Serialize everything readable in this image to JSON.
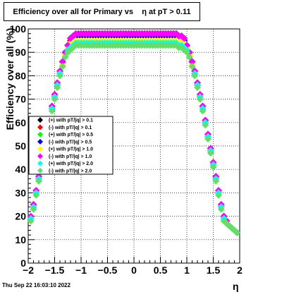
{
  "title": "Efficiency over all for Primary vs    η at pT > 0.11",
  "ylabel": "Efficiency over all (%)",
  "xlabel": "η",
  "footer": "Thu Sep 22 16:03:10 2022",
  "chart_data": {
    "type": "scatter",
    "title": "Efficiency over all for Primary vs    η at pT > 0.11",
    "xlabel": "η",
    "ylabel": "Efficiency over all (%)",
    "xlim": [
      -2,
      2
    ],
    "ylim": [
      0,
      100
    ],
    "grid": true,
    "legend_position": "left-middle",
    "x_ticks": [
      "−2",
      "−1.5",
      "−1",
      "−0.5",
      "0",
      "0.5",
      "1",
      "1.5",
      "2"
    ],
    "y_ticks": [
      "0",
      "10",
      "20",
      "30",
      "40",
      "50",
      "60",
      "70",
      "80",
      "90",
      "100"
    ],
    "x": [
      -1.95,
      -1.9,
      -1.85,
      -1.8,
      -1.75,
      -1.7,
      -1.65,
      -1.6,
      -1.55,
      -1.5,
      -1.45,
      -1.4,
      -1.35,
      -1.3,
      -1.25,
      -1.2,
      -1.15,
      -1.1,
      -1.05,
      -1.0,
      -0.95,
      -0.9,
      -0.85,
      -0.8,
      -0.75,
      -0.7,
      -0.65,
      -0.6,
      -0.55,
      -0.5,
      -0.45,
      -0.4,
      -0.35,
      -0.3,
      -0.25,
      -0.2,
      -0.15,
      -0.1,
      -0.05,
      0.0,
      0.05,
      0.1,
      0.15,
      0.2,
      0.25,
      0.3,
      0.35,
      0.4,
      0.45,
      0.5,
      0.55,
      0.6,
      0.65,
      0.7,
      0.75,
      0.8,
      0.85,
      0.9,
      0.95,
      1.0,
      1.05,
      1.1,
      1.15,
      1.2,
      1.25,
      1.3,
      1.35,
      1.4,
      1.45,
      1.5,
      1.55,
      1.6,
      1.65,
      1.7,
      1.75,
      1.8,
      1.85,
      1.9,
      1.95
    ],
    "series": [
      {
        "name": "(+) with pT/|q| > 0.1",
        "color": "#000000",
        "marker": "diamond",
        "values": [
          19,
          24,
          30,
          36,
          42,
          48,
          54,
          60,
          66,
          71,
          76,
          81,
          86,
          90,
          93,
          96,
          97,
          97,
          98,
          98,
          98,
          98,
          98,
          98,
          98,
          98,
          98,
          98,
          98,
          98,
          98,
          98,
          98,
          98,
          98,
          98,
          98,
          98,
          98,
          98,
          98,
          98,
          98,
          98,
          98,
          98,
          98,
          98,
          98,
          98,
          98,
          98,
          98,
          98,
          98,
          98,
          97,
          97,
          96,
          93,
          90,
          86,
          81,
          76,
          71,
          66,
          60,
          54,
          48,
          42,
          36,
          30,
          24,
          19,
          17,
          16,
          15,
          14,
          13
        ]
      },
      {
        "name": "(-) with pT/|q| > 0.1",
        "color": "#ff0000",
        "marker": "diamond",
        "values": [
          19,
          25,
          31,
          37,
          43,
          49,
          55,
          61,
          67,
          72,
          77,
          82,
          86,
          90,
          93,
          95,
          96,
          97,
          97,
          97,
          97,
          97,
          97,
          97,
          97,
          97,
          97,
          97,
          97,
          97,
          97,
          97,
          97,
          97,
          97,
          97,
          97,
          97,
          97,
          97,
          97,
          97,
          97,
          97,
          97,
          97,
          97,
          97,
          97,
          97,
          97,
          97,
          97,
          97,
          97,
          97,
          96,
          96,
          95,
          93,
          90,
          86,
          82,
          77,
          72,
          67,
          61,
          55,
          49,
          43,
          37,
          31,
          25,
          20,
          18,
          16,
          15,
          14,
          13
        ]
      },
      {
        "name": "(+) with pT/|q| > 0.5",
        "color": "#00ff00",
        "marker": "diamond",
        "values": [
          19,
          24,
          30,
          36,
          42,
          48,
          54,
          60,
          66,
          71,
          76,
          81,
          85,
          89,
          92,
          94,
          95,
          96,
          96,
          96,
          96,
          96,
          96,
          96,
          96,
          96,
          96,
          96,
          96,
          96,
          96,
          96,
          96,
          96,
          96,
          96,
          96,
          96,
          96,
          96,
          96,
          96,
          96,
          96,
          96,
          96,
          96,
          96,
          96,
          96,
          96,
          96,
          96,
          96,
          96,
          96,
          95,
          95,
          94,
          92,
          89,
          85,
          81,
          76,
          71,
          66,
          60,
          54,
          48,
          42,
          36,
          30,
          24,
          19,
          17,
          16,
          15,
          14,
          13
        ]
      },
      {
        "name": "(-) with pT/|q| > 0.5",
        "color": "#0000ff",
        "marker": "diamond",
        "values": [
          19,
          24,
          30,
          36,
          42,
          48,
          54,
          60,
          66,
          71,
          76,
          81,
          86,
          90,
          93,
          96,
          97,
          97,
          97,
          97,
          97,
          97,
          97,
          97,
          97,
          97,
          97,
          97,
          97,
          97,
          97,
          97,
          97,
          97,
          97,
          97,
          97,
          97,
          97,
          97,
          97,
          97,
          97,
          97,
          97,
          97,
          97,
          97,
          97,
          97,
          97,
          97,
          97,
          97,
          97,
          97,
          97,
          96,
          95,
          93,
          90,
          86,
          81,
          76,
          71,
          66,
          60,
          54,
          48,
          42,
          36,
          30,
          24,
          20,
          18,
          16,
          15,
          14,
          13
        ]
      },
      {
        "name": "(+) with pT/|q| > 1.0",
        "color": "#ffff00",
        "marker": "diamond",
        "values": [
          19,
          24,
          30,
          36,
          42,
          48,
          54,
          60,
          66,
          71,
          76,
          81,
          85,
          89,
          92,
          94,
          95,
          95,
          95,
          95,
          95,
          95,
          95,
          95,
          95,
          95,
          95,
          95,
          95,
          95,
          95,
          95,
          95,
          95,
          95,
          95,
          95,
          95,
          95,
          95,
          95,
          95,
          95,
          95,
          95,
          95,
          95,
          95,
          95,
          95,
          95,
          95,
          95,
          95,
          95,
          95,
          95,
          95,
          94,
          92,
          89,
          85,
          81,
          76,
          71,
          66,
          60,
          54,
          48,
          42,
          36,
          30,
          24,
          19,
          17,
          16,
          15,
          14,
          13
        ]
      },
      {
        "name": "(-) with pT/|q| > 1.0",
        "color": "#ff00ff",
        "marker": "diamond",
        "values": [
          20,
          25,
          31,
          37,
          43,
          49,
          55,
          61,
          67,
          72,
          77,
          82,
          86,
          90,
          93,
          96,
          97,
          98,
          98,
          98,
          98,
          98,
          98,
          98,
          98,
          98,
          98,
          98,
          98,
          98,
          98,
          98,
          98,
          98,
          98,
          98,
          98,
          98,
          98,
          98,
          98,
          98,
          98,
          98,
          98,
          98,
          98,
          98,
          98,
          98,
          98,
          98,
          98,
          98,
          98,
          98,
          97,
          97,
          96,
          93,
          90,
          86,
          82,
          77,
          72,
          67,
          61,
          55,
          49,
          43,
          37,
          31,
          25,
          20,
          18,
          16,
          15,
          14,
          13
        ]
      },
      {
        "name": "(+) with pT/|q| > 2.0",
        "color": "#00ffff",
        "marker": "diamond",
        "values": [
          19,
          24,
          30,
          36,
          42,
          48,
          54,
          60,
          66,
          71,
          76,
          81,
          84,
          88,
          91,
          92,
          93,
          94,
          94,
          94,
          94,
          94,
          94,
          94,
          94,
          94,
          94,
          94,
          94,
          94,
          94,
          94,
          94,
          94,
          94,
          94,
          94,
          94,
          94,
          94,
          94,
          94,
          94,
          94,
          94,
          94,
          94,
          94,
          94,
          94,
          94,
          94,
          94,
          94,
          94,
          94,
          93,
          93,
          92,
          91,
          88,
          84,
          81,
          76,
          71,
          66,
          60,
          54,
          48,
          42,
          36,
          30,
          24,
          19,
          17,
          16,
          15,
          14,
          13
        ]
      },
      {
        "name": "(-) with pT/|q| > 2.0",
        "color": "#66dd66",
        "marker": "diamond",
        "values": [
          18,
          23,
          29,
          35,
          41,
          47,
          53,
          59,
          65,
          70,
          75,
          80,
          84,
          88,
          90,
          91,
          92,
          93,
          93,
          93,
          93,
          93,
          93,
          93,
          93,
          93,
          93,
          93,
          93,
          93,
          93,
          93,
          93,
          93,
          93,
          93,
          93,
          93,
          93,
          93,
          93,
          93,
          93,
          93,
          93,
          93,
          93,
          93,
          93,
          93,
          93,
          93,
          93,
          93,
          93,
          93,
          92,
          92,
          91,
          90,
          88,
          84,
          80,
          75,
          70,
          65,
          59,
          53,
          47,
          41,
          35,
          29,
          23,
          18,
          17,
          16,
          15,
          14,
          13
        ]
      }
    ]
  }
}
